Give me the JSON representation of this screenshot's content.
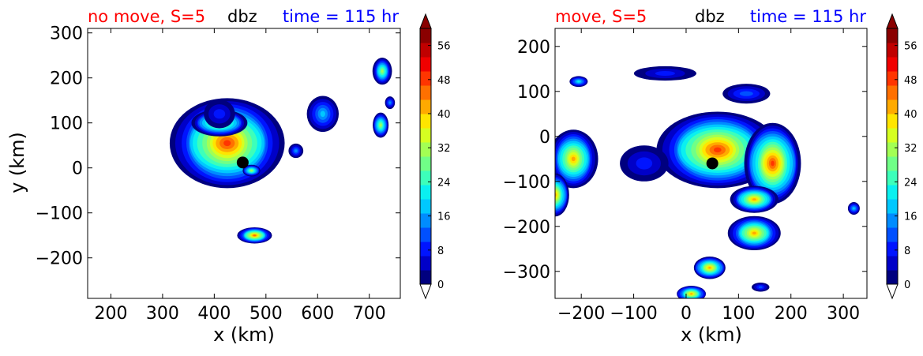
{
  "colors": {
    "title_left": "#ff0000",
    "title_mid": "#000000",
    "title_right": "#0000ff",
    "colormap": [
      "#00007f",
      "#0000c8",
      "#0014ff",
      "#0050ff",
      "#008cff",
      "#00c8ff",
      "#0af0f0",
      "#3dffba",
      "#70ff87",
      "#a3ff54",
      "#d6ff21",
      "#ffe500",
      "#ffaa00",
      "#ff7000",
      "#ff3500",
      "#f00000",
      "#c00000",
      "#8a0000"
    ]
  },
  "chart_data": [
    {
      "type": "contour",
      "title_left": "no move, S=5",
      "title_mid": "dbz",
      "title_right": "time = 115 hr",
      "xlabel": "x (km)",
      "ylabel": "y (km)",
      "xlim": [
        155,
        760
      ],
      "ylim": [
        -290,
        310
      ],
      "xticks": [
        200,
        300,
        400,
        500,
        600,
        700
      ],
      "yticks": [
        -200,
        -100,
        0,
        100,
        200,
        300
      ],
      "xtick_labels": [
        "200",
        "300",
        "400",
        "500",
        "600",
        "700"
      ],
      "ytick_labels": [
        "−200",
        "−100",
        "0",
        "100",
        "200",
        "300"
      ],
      "colorbar": {
        "ticks": [
          0,
          8,
          16,
          24,
          32,
          40,
          48,
          56
        ],
        "tick_labels": [
          "0",
          "8",
          "16",
          "24",
          "32",
          "40",
          "48",
          "56"
        ],
        "range": [
          0,
          60
        ],
        "extend": "both"
      },
      "center_marker": [
        455,
        12
      ],
      "cells": [
        {
          "x": 425,
          "y": 55,
          "rx": 105,
          "ry": 100,
          "peak": 52
        },
        {
          "x": 410,
          "y": 100,
          "rx": 55,
          "ry": 30,
          "peak": 40
        },
        {
          "x": 410,
          "y": 120,
          "rx": 32,
          "ry": 32,
          "peak": 12
        },
        {
          "x": 610,
          "y": 120,
          "rx": 30,
          "ry": 40,
          "peak": 22
        },
        {
          "x": 725,
          "y": 215,
          "rx": 18,
          "ry": 30,
          "peak": 34
        },
        {
          "x": 722,
          "y": 95,
          "rx": 16,
          "ry": 28,
          "peak": 34
        },
        {
          "x": 740,
          "y": 145,
          "rx": 10,
          "ry": 14,
          "peak": 18
        },
        {
          "x": 478,
          "y": -150,
          "rx": 32,
          "ry": 18,
          "peak": 48
        },
        {
          "x": 558,
          "y": 38,
          "rx": 14,
          "ry": 16,
          "peak": 18
        },
        {
          "x": 472,
          "y": -6,
          "rx": 18,
          "ry": 13,
          "peak": 36
        }
      ]
    },
    {
      "type": "contour",
      "title_left": "move, S=5",
      "title_mid": "dbz",
      "title_right": "time = 115 hr",
      "xlabel": "x (km)",
      "ylabel": "",
      "xlim": [
        -250,
        345
      ],
      "ylim": [
        -360,
        240
      ],
      "xticks": [
        -200,
        -100,
        0,
        100,
        200,
        300
      ],
      "yticks": [
        -300,
        -200,
        -100,
        0,
        100,
        200
      ],
      "xtick_labels": [
        "−200",
        "−100",
        "0",
        "100",
        "200",
        "300"
      ],
      "ytick_labels": [
        "−300",
        "−200",
        "−100",
        "0",
        "100",
        "200"
      ],
      "colorbar": {
        "ticks": [
          0,
          8,
          16,
          24,
          32,
          40,
          48,
          56
        ],
        "tick_labels": [
          "0",
          "8",
          "16",
          "24",
          "32",
          "40",
          "48",
          "56"
        ],
        "range": [
          0,
          60
        ],
        "extend": "both"
      },
      "center_marker": [
        50,
        -60
      ],
      "cells": [
        {
          "x": 60,
          "y": -30,
          "rx": 110,
          "ry": 85,
          "peak": 50
        },
        {
          "x": 165,
          "y": -60,
          "rx": 55,
          "ry": 90,
          "peak": 50
        },
        {
          "x": 115,
          "y": 95,
          "rx": 48,
          "ry": 22,
          "peak": 14
        },
        {
          "x": -80,
          "y": -60,
          "rx": 45,
          "ry": 40,
          "peak": 12
        },
        {
          "x": -215,
          "y": -50,
          "rx": 45,
          "ry": 65,
          "peak": 46
        },
        {
          "x": -250,
          "y": -130,
          "rx": 28,
          "ry": 48,
          "peak": 46
        },
        {
          "x": -205,
          "y": 122,
          "rx": 18,
          "ry": 12,
          "peak": 24
        },
        {
          "x": 130,
          "y": -215,
          "rx": 48,
          "ry": 38,
          "peak": 46
        },
        {
          "x": 130,
          "y": -140,
          "rx": 45,
          "ry": 30,
          "peak": 46
        },
        {
          "x": 45,
          "y": -292,
          "rx": 32,
          "ry": 25,
          "peak": 46
        },
        {
          "x": 10,
          "y": -350,
          "rx": 28,
          "ry": 18,
          "peak": 46
        },
        {
          "x": 142,
          "y": -335,
          "rx": 16,
          "ry": 10,
          "peak": 16
        },
        {
          "x": -40,
          "y": 140,
          "rx": 60,
          "ry": 16,
          "peak": 12
        },
        {
          "x": 320,
          "y": -160,
          "rx": 12,
          "ry": 14,
          "peak": 22
        }
      ]
    }
  ]
}
